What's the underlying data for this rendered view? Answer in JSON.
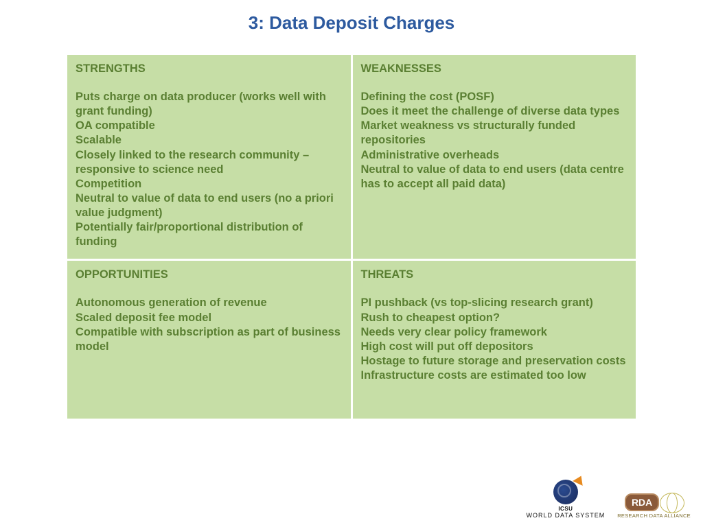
{
  "title": "3: Data Deposit Charges",
  "title_color": "#2d5a9f",
  "title_fontsize": 26,
  "cell_bg": "#c6dea6",
  "cell_text_color": "#5a7f32",
  "cell_fontsize": 16.5,
  "swot": {
    "strengths": {
      "heading": "STRENGTHS",
      "items": [
        "Puts charge on data producer (works well with grant funding)",
        "OA compatible",
        "Scalable",
        "Closely linked to the research community – responsive to science need",
        "Competition",
        "Neutral to value of data to end users (no a priori value judgment)",
        "Potentially fair/proportional distribution of funding"
      ]
    },
    "weaknesses": {
      "heading": "WEAKNESSES",
      "items": [
        "Defining the cost (POSF)",
        "Does it meet the challenge of diverse data types",
        "Market weakness vs structurally funded repositories",
        "Administrative overheads",
        "Neutral to value of data to end users (data centre has to accept all paid data)"
      ]
    },
    "opportunities": {
      "heading": "OPPORTUNITIES",
      "items": [
        "Autonomous generation of revenue",
        "Scaled deposit fee model",
        "Compatible with subscription as part of business model"
      ]
    },
    "threats": {
      "heading": "THREATS",
      "items": [
        "PI pushback (vs top-slicing research grant)",
        "Rush to cheapest option?",
        "Needs very clear policy framework",
        "High cost will put off depositors",
        "Hostage to future storage and preservation costs",
        "Infrastructure costs are estimated too low"
      ]
    }
  },
  "logos": {
    "wds": {
      "line1": "ICSU",
      "line2": "WORLD DATA SYSTEM"
    },
    "rda": {
      "badge": "RDA",
      "sub": "RESEARCH DATA ALLIANCE"
    }
  }
}
